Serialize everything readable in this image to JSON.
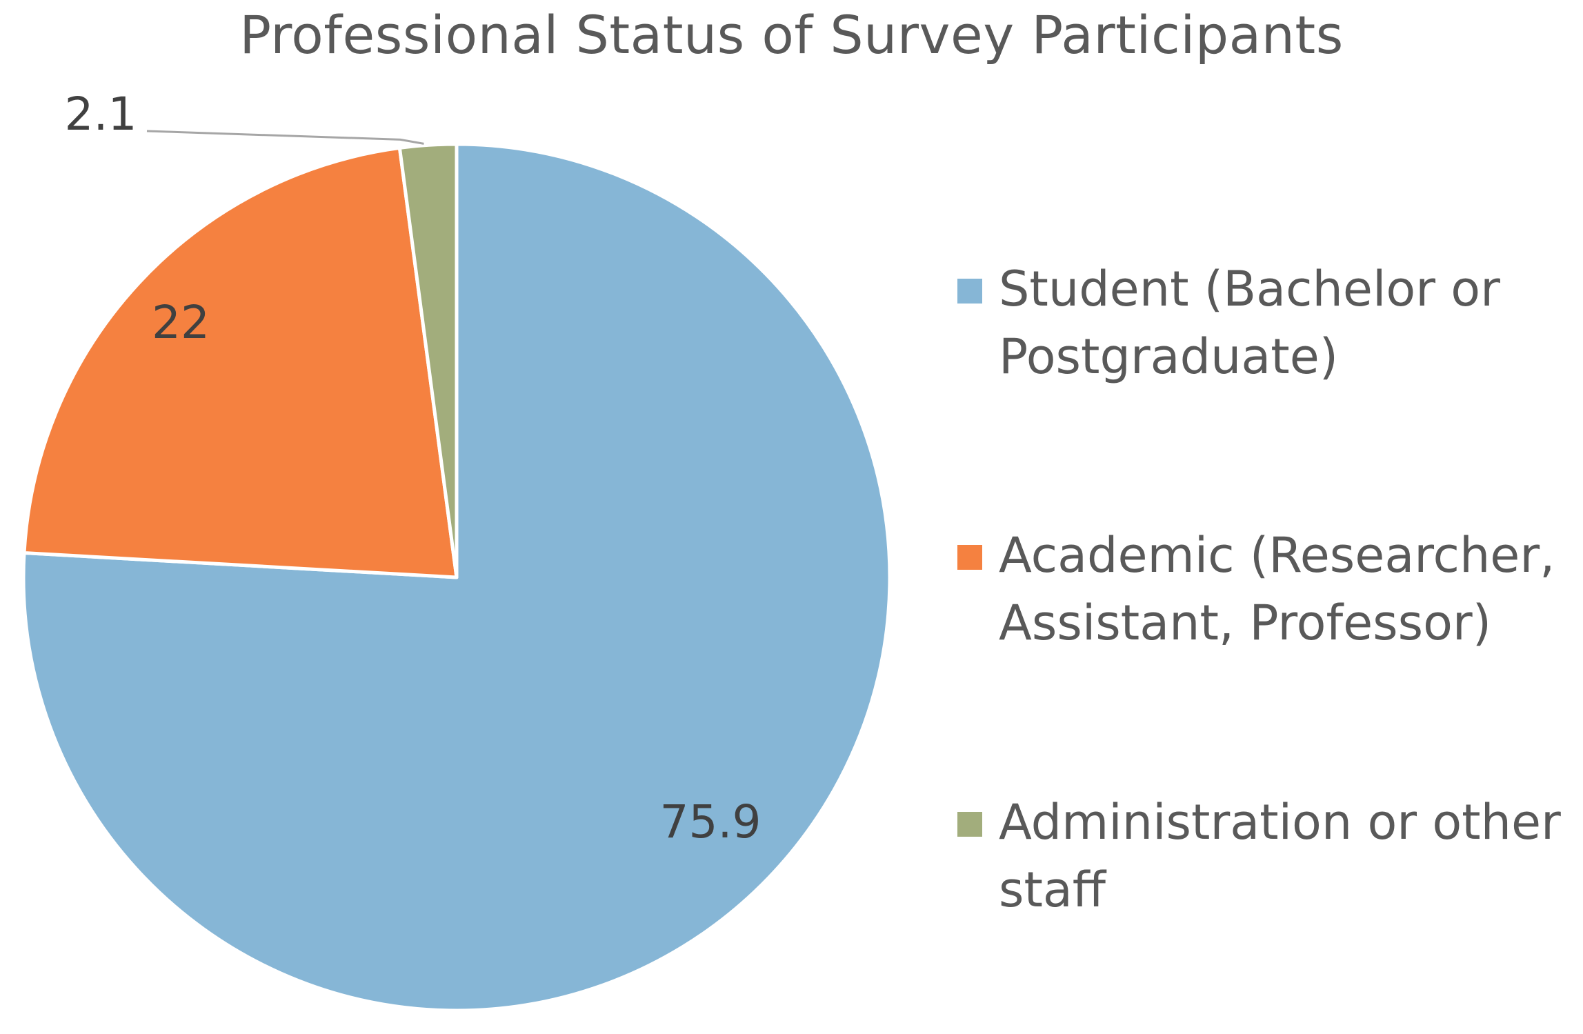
{
  "chart_data": {
    "type": "pie",
    "title": "Professional Status of Survey Participants",
    "slices": [
      {
        "label": "Student (Bachelor or Postgraduate)",
        "value": 75.9,
        "data_label": "75.9",
        "color": "#86B6D6"
      },
      {
        "label": "Academic (Researcher, Assistant, Professor)",
        "value": 22,
        "data_label": "22",
        "color": "#F58140"
      },
      {
        "label": "Administration or other staff",
        "value": 2.1,
        "data_label": "2.1",
        "color": "#A2AD7C"
      }
    ],
    "start_angle": "12 o'clock",
    "direction": "clockwise",
    "legend_position": "right",
    "data_label_color": "#404040",
    "slice_border_color": "#FFFFFF",
    "leader_line_color": "#A6A6A6"
  }
}
